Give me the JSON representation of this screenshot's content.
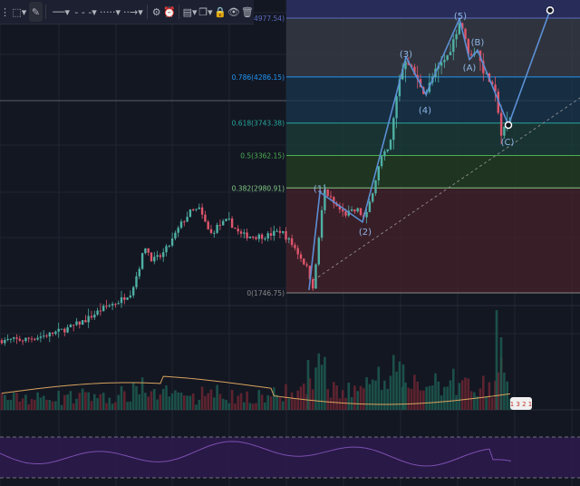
{
  "toolbar": {
    "items": [
      {
        "name": "grip-icon",
        "glyph": "⋮"
      },
      {
        "name": "cursor-tool",
        "glyph": "⬚▾"
      },
      {
        "name": "pencil-tool",
        "glyph": "✎"
      },
      {
        "name": "line-style-solid",
        "glyph": "──▾"
      },
      {
        "name": "line-style-dashed",
        "glyph": "- - -▾"
      },
      {
        "name": "line-style-dotted",
        "glyph": "·····▾"
      },
      {
        "name": "line-end-arrow",
        "glyph": "··→▾"
      },
      {
        "name": "settings-icon",
        "glyph": "⚙"
      },
      {
        "name": "alert-icon",
        "glyph": "⏰"
      },
      {
        "name": "templates-icon",
        "glyph": "▤▾"
      },
      {
        "name": "clone-icon",
        "glyph": "❐▾"
      },
      {
        "name": "lock-icon",
        "glyph": "🔒"
      },
      {
        "name": "visibility-icon",
        "glyph": "👁"
      },
      {
        "name": "delete-icon",
        "glyph": "🗑"
      }
    ]
  },
  "fib_levels": [
    {
      "ratio": "1",
      "price": 4977.54,
      "label": "1(4977.54)",
      "color": "#5c6bc0"
    },
    {
      "ratio": "0.786",
      "price": 4286.15,
      "label": "0.786(4286.15)",
      "color": "#2196f3"
    },
    {
      "ratio": "0.618",
      "price": 3743.38,
      "label": "0.618(3743.38)",
      "color": "#26a69a"
    },
    {
      "ratio": "0.5",
      "price": 3362.15,
      "label": "0.5(3362.15)",
      "color": "#4caf50"
    },
    {
      "ratio": "0.382",
      "price": 2980.91,
      "label": "0.382(2980.91)",
      "color": "#81c784"
    },
    {
      "ratio": "0",
      "price": 1746.75,
      "label": "0(1746.75)",
      "color": "#888888"
    }
  ],
  "wave_labels": [
    {
      "text": "(1)",
      "x_bar": 353,
      "price": 2980
    },
    {
      "text": "(2)",
      "x_bar": 403,
      "price": 2470
    },
    {
      "text": "(3)",
      "x_bar": 448,
      "price": 4560
    },
    {
      "text": "(4)",
      "x_bar": 469,
      "price": 3900
    },
    {
      "text": "(5)",
      "x_bar": 508,
      "price": 5010
    },
    {
      "text": "(A)",
      "x_bar": 518,
      "price": 4400
    },
    {
      "text": "(B)",
      "x_bar": 527,
      "price": 4700
    },
    {
      "text": "(C)",
      "x_bar": 560,
      "price": 3530
    }
  ],
  "volume_badge": {
    "text": "1 3 2 1"
  },
  "chart_data": {
    "type": "candlestick",
    "price_axis": "right (clipped)",
    "fib_retracement": {
      "low": 1746.75,
      "high": 4977.54
    },
    "elliott_wave_points": [
      {
        "label": "start",
        "price": 1780
      },
      {
        "label": "(1)",
        "price": 2930
      },
      {
        "label": "(2)",
        "price": 2580
      },
      {
        "label": "(3)",
        "price": 4520
      },
      {
        "label": "(4)",
        "price": 4080
      },
      {
        "label": "(5)",
        "price": 4970
      },
      {
        "label": "(A)",
        "price": 4490
      },
      {
        "label": "(B)",
        "price": 4600
      },
      {
        "label": "(C)",
        "price": 3720
      },
      {
        "label": "projection",
        "price": 5070
      }
    ],
    "colors": {
      "up": "#4fb0a4",
      "down": "#e0566c",
      "wave": "#5b8fd4",
      "rsi_band": "#3a1f5e"
    }
  }
}
